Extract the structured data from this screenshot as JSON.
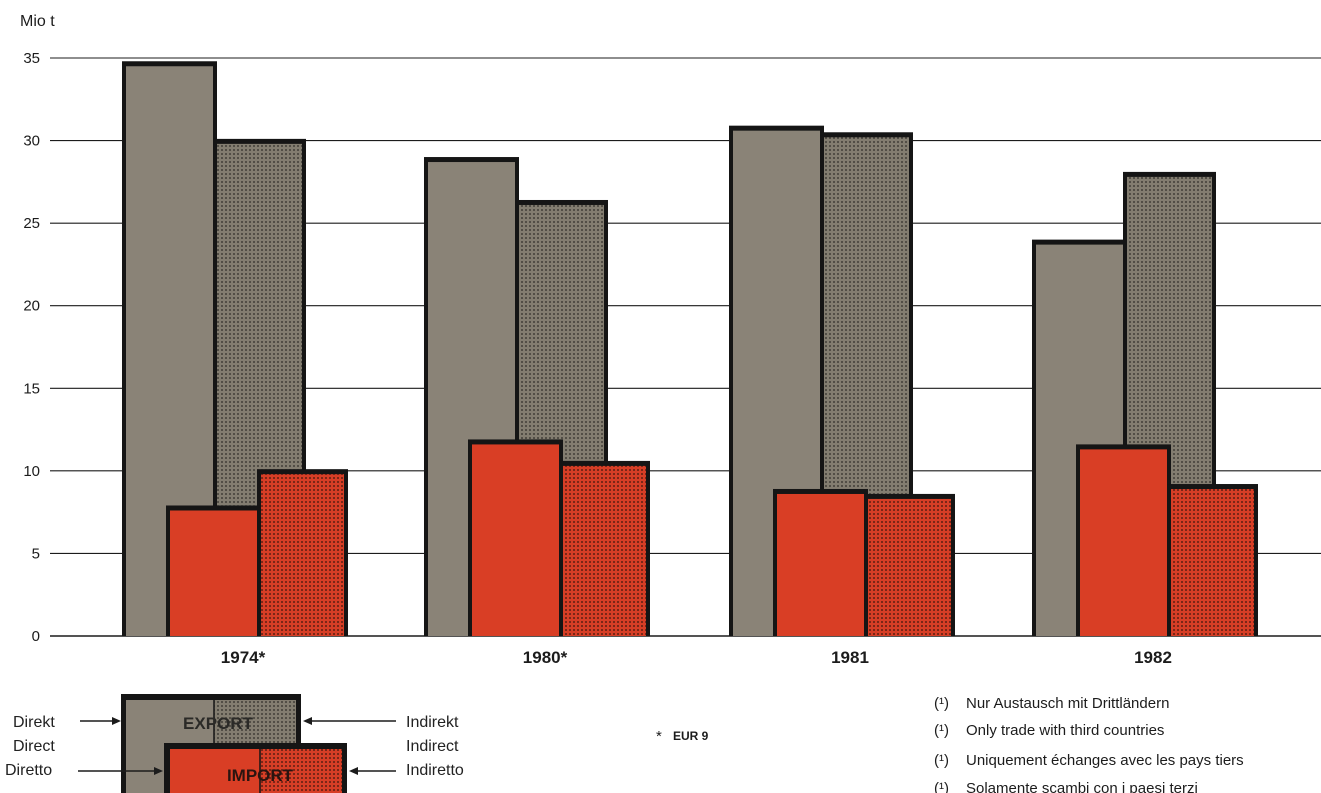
{
  "chart_data": {
    "type": "bar",
    "ylabel": "Mio t",
    "ylim": [
      0,
      35
    ],
    "yticks": [
      0,
      5,
      10,
      15,
      20,
      25,
      30,
      35
    ],
    "grid": true,
    "categories": [
      "1974*",
      "1980*",
      "1981",
      "1982"
    ],
    "series": [
      {
        "name": "EXPORT Direkt",
        "values": [
          34.5,
          28.7,
          30.6,
          23.7
        ]
      },
      {
        "name": "EXPORT Indirekt",
        "values": [
          29.8,
          26.1,
          30.2,
          27.8
        ]
      },
      {
        "name": "IMPORT Direkt",
        "values": [
          7.6,
          11.6,
          8.6,
          11.3
        ]
      },
      {
        "name": "IMPORT Indirekt",
        "values": [
          9.8,
          10.3,
          8.3,
          8.9
        ]
      }
    ],
    "colors": {
      "export": "#8a8377",
      "export_dark": "#3a3833",
      "import": "#d93e25",
      "import_dark": "#2a1410",
      "outline": "#151515"
    }
  },
  "legend": {
    "export_label": "EXPORT",
    "import_label": "IMPORT",
    "left": [
      "Direkt",
      "Direct",
      "Diretto"
    ],
    "right": [
      "Indirekt",
      "Indirect",
      "Indiretto"
    ]
  },
  "footnote_star": "*",
  "footnote_star_text": "EUR 9",
  "notes": [
    {
      "marker": "(¹)",
      "text": "Nur Austausch mit Drittländern"
    },
    {
      "marker": "(¹)",
      "text": "Only trade with third countries"
    },
    {
      "marker": "(¹)",
      "text": "Uniquement échanges avec les pays tiers"
    },
    {
      "marker": "(¹)",
      "text": "Solamente scambi con i paesi terzi"
    }
  ]
}
